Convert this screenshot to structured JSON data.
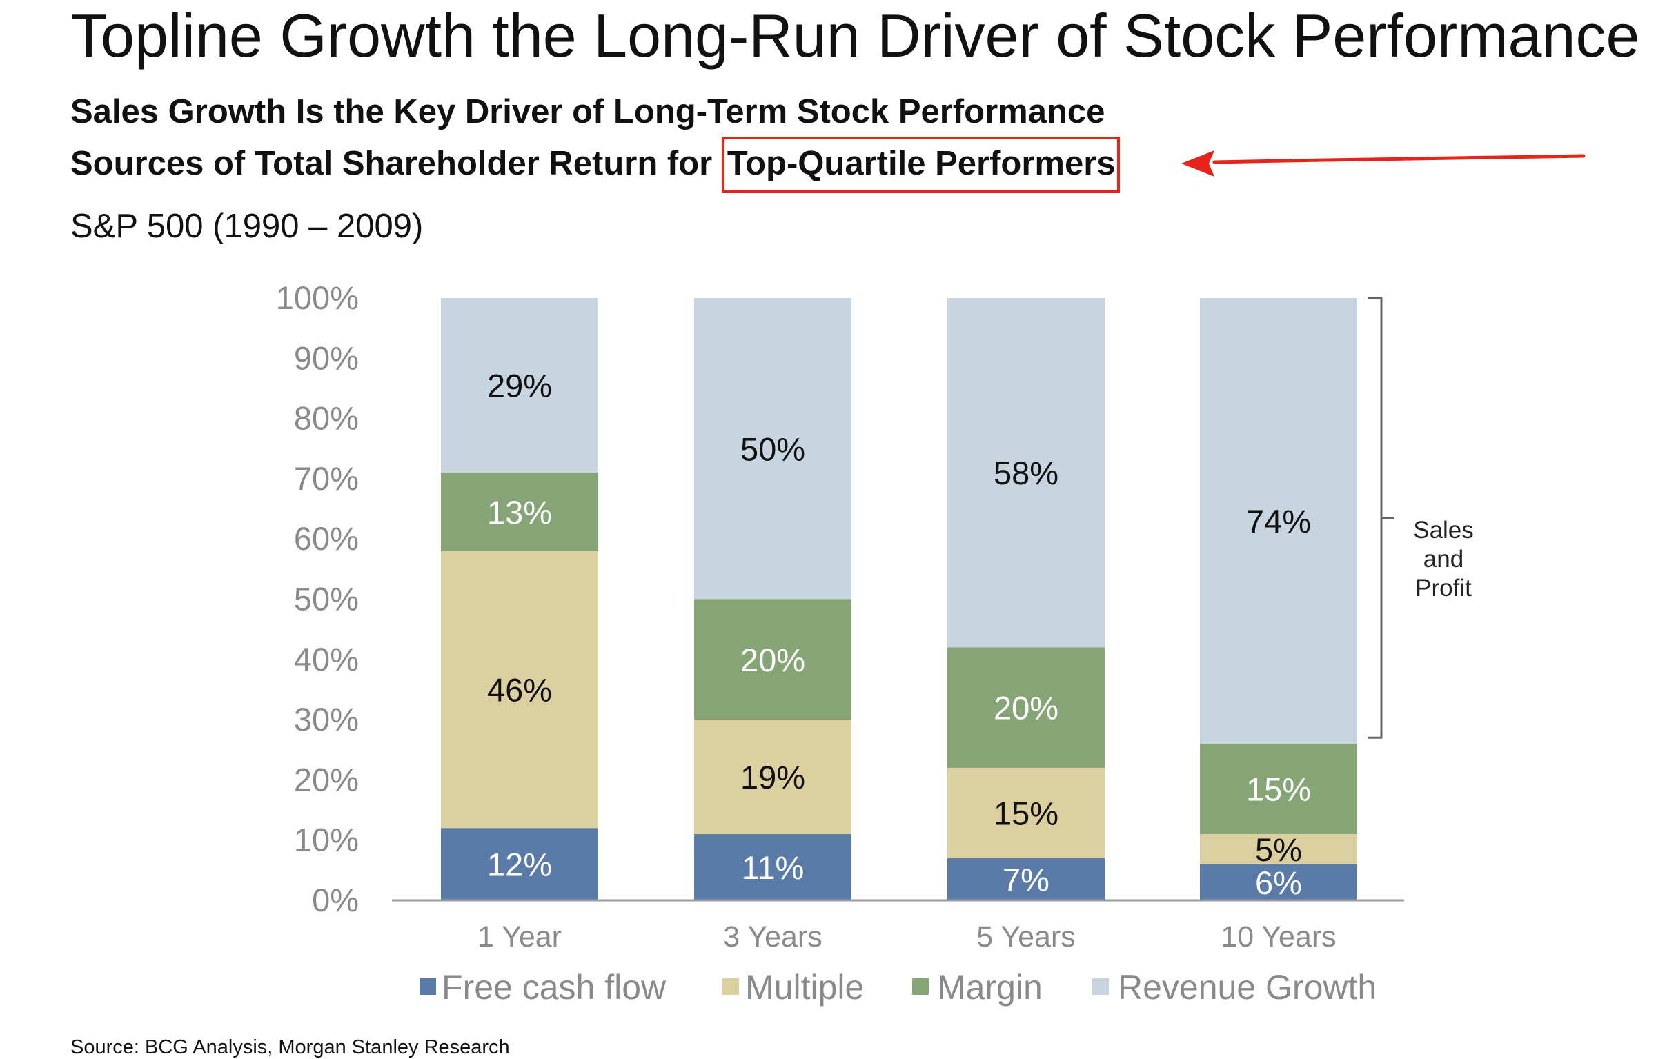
{
  "header": {
    "title": "Topline Growth the Long-Run Driver of Stock Performance",
    "subtitle_line1": "Sales Growth Is the Key Driver of Long-Term Stock Performance",
    "subtitle_line2_prefix": "Sources of Total Shareholder Return for ",
    "subtitle_line2_highlight": "Top-Quartile Performers",
    "meta": "S&P 500 (1990 – 2009)"
  },
  "annotation": {
    "highlight_color": "#e8241a",
    "bracket_label": [
      "Sales",
      "and",
      "Profit"
    ]
  },
  "footer": {
    "source": "Source: BCG Analysis, Morgan Stanley Research"
  },
  "chart_data": {
    "type": "bar",
    "stacked": true,
    "categories": [
      "1 Year",
      "3 Years",
      "5 Years",
      "10 Years"
    ],
    "series": [
      {
        "name": "Free cash flow",
        "values": [
          12,
          11,
          7,
          6
        ],
        "labels": [
          "12%",
          "11%",
          "7%",
          "6%"
        ],
        "color": "#5a7aa8",
        "label_color": "#ffffff"
      },
      {
        "name": "Multiple",
        "values": [
          46,
          19,
          15,
          5
        ],
        "labels": [
          "46%",
          "19%",
          "15%",
          "5%"
        ],
        "color": "#ddd0a0",
        "label_color": "#111111"
      },
      {
        "name": "Margin",
        "values": [
          13,
          20,
          20,
          15
        ],
        "labels": [
          "13%",
          "20%",
          "20%",
          "15%"
        ],
        "color": "#86a576",
        "label_color": "#ffffff"
      },
      {
        "name": "Revenue Growth",
        "values": [
          29,
          50,
          58,
          74
        ],
        "labels": [
          "29%",
          "50%",
          "58%",
          "74%"
        ],
        "color": "#c6d5df",
        "label_color": "#111111"
      }
    ],
    "ylim": [
      0,
      100
    ],
    "yticks": [
      "0%",
      "10%",
      "20%",
      "30%",
      "40%",
      "50%",
      "60%",
      "70%",
      "80%",
      "90%",
      "100%"
    ],
    "xlabel": "",
    "ylabel": "",
    "grid": false,
    "legend": "bottom"
  }
}
